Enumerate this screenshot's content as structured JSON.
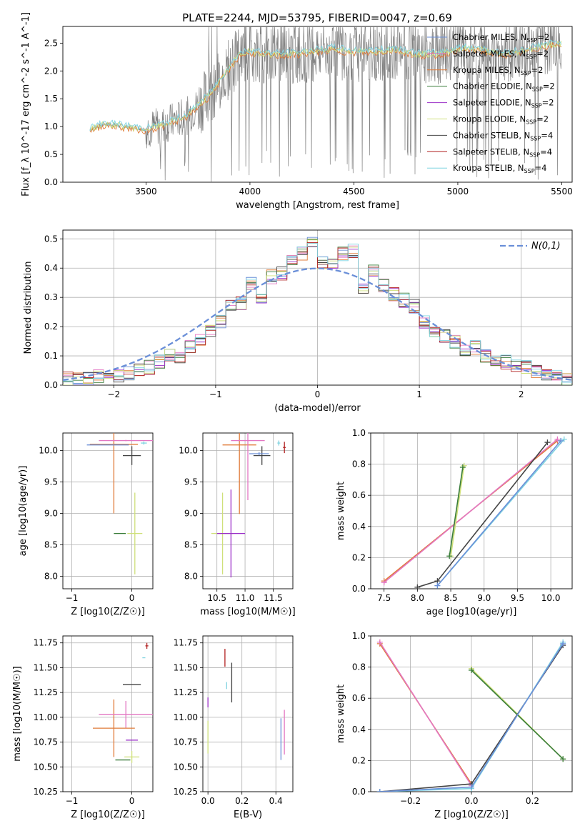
{
  "figure_title": "PLATE=2244, MJD=53795, FIBERID=0047, z=0.69",
  "colors": {
    "Chabrier MILES": "#6a8fd8",
    "Salpeter MILES": "#e377c2",
    "Kroupa MILES": "#e07b39",
    "Chabrier ELODIE": "#3a7d3a",
    "Salpeter ELODIE": "#9b30c8",
    "Kroupa ELODIE": "#cfe07a",
    "Chabrier STELIB": "#444444",
    "Salpeter STELIB": "#b22222",
    "Kroupa STELIB": "#7fd3e0",
    "data": "#808080",
    "normal": "#6a8fd8"
  },
  "chart_data": [
    {
      "id": "spectrum",
      "type": "line",
      "xlabel": "wavelength [Angstrom, rest frame]",
      "ylabel": "Flux [f_λ 10^-17 erg cm^-2 s^-1 A^-1]",
      "xlim": [
        3100,
        5550
      ],
      "ylim": [
        0,
        2.8
      ],
      "xticks": [
        3500,
        4000,
        4500,
        5000,
        5500
      ],
      "yticks": [
        0.0,
        0.5,
        1.0,
        1.5,
        2.0,
        2.5
      ],
      "grid": false,
      "legend_position": "right",
      "legend": [
        {
          "model": "Chabrier MILES",
          "label": "Chabrier MILES, N",
          "sub": "SSP",
          "suffix": "=2"
        },
        {
          "model": "Salpeter MILES",
          "label": "Salpeter MILES, N",
          "sub": "SSP",
          "suffix": "=2"
        },
        {
          "model": "Kroupa MILES",
          "label": "Kroupa MILES, N",
          "sub": "SSP",
          "suffix": "=2"
        },
        {
          "model": "Chabrier ELODIE",
          "label": "Chabrier ELODIE, N",
          "sub": "SSP",
          "suffix": "=2"
        },
        {
          "model": "Salpeter ELODIE",
          "label": "Salpeter ELODIE, N",
          "sub": "SSP",
          "suffix": "=2"
        },
        {
          "model": "Kroupa ELODIE",
          "label": "Kroupa ELODIE, N",
          "sub": "SSP",
          "suffix": "=2"
        },
        {
          "model": "Chabrier STELIB",
          "label": "Chabrier STELIB, N",
          "sub": "SSP",
          "suffix": "=4"
        },
        {
          "model": "Salpeter STELIB",
          "label": "Salpeter STELIB, N",
          "sub": "SSP",
          "suffix": "=4"
        },
        {
          "model": "Kroupa STELIB",
          "label": "Kroupa STELIB, N",
          "sub": "SSP",
          "suffix": "=4"
        }
      ],
      "model_continuum": {
        "x": [
          3230,
          3300,
          3400,
          3500,
          3600,
          3700,
          3800,
          3880,
          3950,
          4000,
          4100,
          4200,
          4300,
          4400,
          4500,
          4600,
          4700,
          4800,
          4900,
          5000,
          5100,
          5200,
          5300,
          5400,
          5500
        ],
        "y": [
          0.95,
          1.05,
          1.0,
          0.95,
          1.05,
          1.2,
          1.55,
          1.95,
          2.3,
          2.35,
          2.3,
          2.3,
          2.35,
          2.4,
          2.35,
          2.35,
          2.4,
          2.3,
          2.3,
          2.4,
          2.4,
          2.3,
          2.35,
          2.45,
          2.5
        ]
      }
    },
    {
      "id": "residuals",
      "type": "line",
      "xlabel": "(data-model)/error",
      "ylabel": "Normed distribution",
      "xlim": [
        -2.5,
        2.5
      ],
      "ylim": [
        0,
        0.53
      ],
      "xticks": [
        -2,
        -1,
        0,
        1,
        2
      ],
      "yticks": [
        0.0,
        0.1,
        0.2,
        0.3,
        0.4,
        0.5
      ],
      "grid": true,
      "legend_position": "top-right",
      "normal_label": "N(0,1)",
      "hist_bins": [
        -2.5,
        2.5,
        50
      ],
      "hist_values": [
        0.02,
        0.02,
        0.02,
        0.03,
        0.02,
        0.03,
        0.04,
        0.05,
        0.06,
        0.08,
        0.1,
        0.09,
        0.13,
        0.15,
        0.19,
        0.22,
        0.27,
        0.28,
        0.35,
        0.3,
        0.37,
        0.38,
        0.42,
        0.45,
        0.49,
        0.42,
        0.41,
        0.45,
        0.46,
        0.33,
        0.39,
        0.34,
        0.31,
        0.29,
        0.27,
        0.22,
        0.19,
        0.17,
        0.15,
        0.12,
        0.13,
        0.1,
        0.09,
        0.08,
        0.07,
        0.06,
        0.05,
        0.04,
        0.03,
        0.02
      ]
    },
    {
      "id": "age-vs-Z",
      "type": "scatter",
      "xlabel": "Z [log10(Z/Z☉)]",
      "ylabel": "age [log10(age/yr)]",
      "xlim": [
        -1.15,
        0.35
      ],
      "ylim": [
        7.8,
        10.28
      ],
      "xticks": [
        -1,
        0
      ],
      "yticks": [
        8.0,
        8.5,
        9.0,
        9.5,
        10.0
      ],
      "grid": true,
      "points": [
        {
          "model": "Kroupa MILES",
          "x": -0.3,
          "y": 10.1,
          "xerr": 0.8,
          "yerr": 2.2
        },
        {
          "model": "Salpeter MILES",
          "x": -0.1,
          "y": 10.16,
          "xerr": 0.9,
          "yerr": 0.02
        },
        {
          "model": "Chabrier STELIB",
          "x": 0.0,
          "y": 9.92,
          "xerr": 0.3,
          "yerr": 0.3
        },
        {
          "model": "Kroupa ELODIE",
          "x": 0.05,
          "y": 8.68,
          "xerr": 0.25,
          "yerr": 1.3
        },
        {
          "model": "Chabrier ELODIE",
          "x": -0.2,
          "y": 8.68,
          "xerr": 0.2,
          "yerr": 0.0
        },
        {
          "model": "Kroupa STELIB",
          "x": 0.2,
          "y": 10.12,
          "xerr": 0.1,
          "yerr": 0.05
        },
        {
          "model": "Chabrier MILES",
          "x": -0.4,
          "y": 10.09,
          "xerr": 0.7,
          "yerr": 0.0
        }
      ]
    },
    {
      "id": "age-vs-mass",
      "type": "scatter",
      "xlabel": "mass [log10(M/M☉)]",
      "ylabel": "",
      "xlim": [
        10.25,
        11.85
      ],
      "ylim": [
        7.8,
        10.28
      ],
      "xticks": [
        10.5,
        11.0,
        11.5
      ],
      "yticks": [
        8.0,
        8.5,
        9.0,
        9.5,
        10.0
      ],
      "grid": true,
      "points": [
        {
          "model": "Kroupa MILES",
          "x": 10.9,
          "y": 10.09,
          "xerr": 0.6,
          "yerr": 2.2
        },
        {
          "model": "Salpeter MILES",
          "x": 11.05,
          "y": 10.16,
          "xerr": 0.6,
          "yerr": 1.9
        },
        {
          "model": "Chabrier STELIB",
          "x": 11.3,
          "y": 9.92,
          "xerr": 0.3,
          "yerr": 0.3
        },
        {
          "model": "Salpeter STELIB",
          "x": 11.7,
          "y": 10.05,
          "xerr": 0.05,
          "yerr": 0.18
        },
        {
          "model": "Kroupa ELODIE",
          "x": 10.6,
          "y": 8.68,
          "xerr": 0.4,
          "yerr": 1.3
        },
        {
          "model": "Salpeter ELODIE",
          "x": 10.75,
          "y": 8.68,
          "xerr": 0.5,
          "yerr": 1.4
        },
        {
          "model": "Chabrier MILES",
          "x": 11.25,
          "y": 9.95,
          "xerr": 0.35,
          "yerr": 0.05
        },
        {
          "model": "Kroupa STELIB",
          "x": 11.6,
          "y": 10.12,
          "xerr": 0.05,
          "yerr": 0.08
        }
      ]
    },
    {
      "id": "weight-vs-age",
      "type": "line",
      "xlabel": "age [log10(age/yr)]",
      "ylabel": "mass weight",
      "xlim": [
        7.3,
        10.32
      ],
      "ylim": [
        0,
        1.0
      ],
      "xticks": [
        7.5,
        8.0,
        8.5,
        9.0,
        9.5,
        10.0
      ],
      "yticks": [
        0.0,
        0.2,
        0.4,
        0.6,
        0.8,
        1.0
      ],
      "grid": true,
      "series": [
        {
          "model": "Kroupa MILES",
          "x": [
            7.5,
            10.1
          ],
          "y": [
            0.05,
            0.95
          ]
        },
        {
          "model": "Salpeter MILES",
          "x": [
            7.5,
            10.1
          ],
          "y": [
            0.04,
            0.96
          ]
        },
        {
          "model": "Kroupa ELODIE",
          "x": [
            8.5,
            8.7
          ],
          "y": [
            0.21,
            0.79
          ]
        },
        {
          "model": "Chabrier ELODIE",
          "x": [
            8.48,
            8.68
          ],
          "y": [
            0.21,
            0.78
          ]
        },
        {
          "model": "Chabrier STELIB",
          "x": [
            8.0,
            8.3,
            9.95
          ],
          "y": [
            0.01,
            0.05,
            0.94
          ]
        },
        {
          "model": "Kroupa STELIB",
          "x": [
            8.3,
            10.2
          ],
          "y": [
            0.02,
            0.96
          ]
        },
        {
          "model": "Chabrier MILES",
          "x": [
            8.3,
            10.15
          ],
          "y": [
            0.02,
            0.95
          ]
        }
      ]
    },
    {
      "id": "mass-vs-Z",
      "type": "scatter",
      "xlabel": "Z [log10(Z/Z☉)]",
      "ylabel": "mass [log10(M/M☉)]",
      "xlim": [
        -1.15,
        0.35
      ],
      "ylim": [
        10.25,
        11.82
      ],
      "xticks": [
        -1,
        0
      ],
      "yticks": [
        10.25,
        10.5,
        10.75,
        11.0,
        11.25,
        11.5,
        11.75
      ],
      "grid": true,
      "points": [
        {
          "model": "Kroupa MILES",
          "x": -0.3,
          "y": 10.89,
          "xerr": 0.7,
          "yerr": 0.58
        },
        {
          "model": "Salpeter MILES",
          "x": -0.1,
          "y": 11.03,
          "xerr": 0.9,
          "yerr": 0.27
        },
        {
          "model": "Chabrier STELIB",
          "x": 0.0,
          "y": 11.33,
          "xerr": 0.3,
          "yerr": 0.0
        },
        {
          "model": "Salpeter STELIB",
          "x": 0.25,
          "y": 11.72,
          "xerr": 0.05,
          "yerr": 0.06
        },
        {
          "model": "Kroupa STELIB",
          "x": 0.2,
          "y": 11.6,
          "xerr": 0.05,
          "yerr": 0.0
        },
        {
          "model": "Salpeter ELODIE",
          "x": 0.0,
          "y": 10.77,
          "xerr": 0.2,
          "yerr": 0.0
        },
        {
          "model": "Kroupa ELODIE",
          "x": 0.0,
          "y": 10.6,
          "xerr": 0.25,
          "yerr": 0.12
        },
        {
          "model": "Chabrier ELODIE",
          "x": -0.15,
          "y": 10.57,
          "xerr": 0.25,
          "yerr": 0.0
        }
      ]
    },
    {
      "id": "mass-vs-ebv",
      "type": "scatter",
      "xlabel": "E(B-V)",
      "ylabel": "",
      "xlim": [
        -0.03,
        0.5
      ],
      "ylim": [
        10.25,
        11.82
      ],
      "xticks": [
        0.0,
        0.2,
        0.4
      ],
      "yticks": [
        10.25,
        10.5,
        10.75,
        11.0,
        11.25,
        11.5,
        11.75
      ],
      "grid": true,
      "points": [
        {
          "model": "Salpeter ELODIE",
          "x": 0.0,
          "y": 11.15,
          "xerr": 0.0,
          "yerr": 0.1
        },
        {
          "model": "Kroupa ELODIE",
          "x": 0.0,
          "y": 10.8,
          "xerr": 0.0,
          "yerr": 0.33
        },
        {
          "model": "Salpeter STELIB",
          "x": 0.1,
          "y": 11.6,
          "xerr": 0.0,
          "yerr": 0.18
        },
        {
          "model": "Kroupa STELIB",
          "x": 0.11,
          "y": 11.32,
          "xerr": 0.0,
          "yerr": 0.07
        },
        {
          "model": "Chabrier STELIB",
          "x": 0.14,
          "y": 11.35,
          "xerr": 0.0,
          "yerr": 0.4
        },
        {
          "model": "Chabrier MILES",
          "x": 0.43,
          "y": 10.78,
          "xerr": 0.0,
          "yerr": 0.42
        },
        {
          "model": "Salpeter MILES",
          "x": 0.45,
          "y": 10.85,
          "xerr": 0.0,
          "yerr": 0.45
        }
      ]
    },
    {
      "id": "weight-vs-Z",
      "type": "line",
      "xlabel": "Z [log10(Z/Z☉)]",
      "ylabel": "mass weight",
      "xlim": [
        -0.33,
        0.33
      ],
      "ylim": [
        0,
        1.0
      ],
      "xticks": [
        -0.2,
        0.0,
        0.2
      ],
      "yticks": [
        0.0,
        0.2,
        0.4,
        0.6,
        0.8,
        1.0
      ],
      "grid": true,
      "series": [
        {
          "model": "Kroupa MILES",
          "x": [
            -0.3,
            0.0
          ],
          "y": [
            0.95,
            0.05
          ]
        },
        {
          "model": "Salpeter MILES",
          "x": [
            -0.3,
            0.0
          ],
          "y": [
            0.96,
            0.04
          ]
        },
        {
          "model": "Kroupa ELODIE",
          "x": [
            0.0,
            0.3
          ],
          "y": [
            0.79,
            0.21
          ]
        },
        {
          "model": "Chabrier ELODIE",
          "x": [
            0.0,
            0.3
          ],
          "y": [
            0.78,
            0.21
          ]
        },
        {
          "model": "Chabrier STELIB",
          "x": [
            -0.3,
            0.0,
            0.3
          ],
          "y": [
            0.0,
            0.05,
            0.94
          ]
        },
        {
          "model": "Kroupa STELIB",
          "x": [
            -0.3,
            0.0,
            0.3
          ],
          "y": [
            0.0,
            0.02,
            0.96
          ]
        },
        {
          "model": "Chabrier MILES",
          "x": [
            -0.3,
            0.0,
            0.3
          ],
          "y": [
            0.0,
            0.03,
            0.95
          ]
        }
      ]
    }
  ]
}
